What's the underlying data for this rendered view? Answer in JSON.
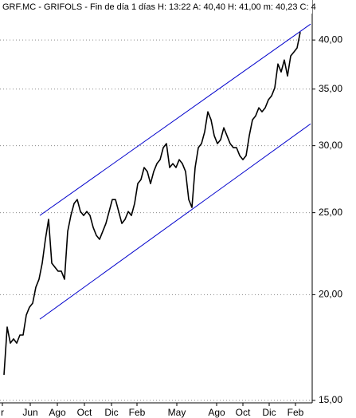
{
  "chart_data": {
    "type": "line",
    "title": "GRF.MC - GRIFOLS - Fin de día 1 días  H: 13:22  A: 40,40  H: 41,00  m: 40,23  C: 4",
    "log_y": true,
    "grid": true,
    "series": [
      {
        "color": "#000000",
        "values": [
          16.08,
          18.31,
          17.53,
          17.73,
          17.53,
          17.92,
          17.92,
          18.92,
          19.33,
          19.54,
          20.41,
          20.86,
          21.79,
          23.25,
          24.55,
          21.79,
          21.55,
          21.32,
          21.32,
          20.86,
          23.76,
          24.81,
          25.63,
          25.91,
          25.08,
          24.81,
          25.08,
          24.81,
          24.02,
          23.5,
          23.25,
          23.76,
          24.28,
          25.08,
          25.91,
          25.91,
          25.08,
          24.28,
          24.55,
          25.08,
          24.81,
          25.63,
          27.06,
          27.36,
          28.27,
          27.96,
          27.06,
          27.96,
          28.57,
          28.88,
          29.84,
          30.17,
          28.27,
          28.57,
          28.27,
          28.88,
          28.57,
          27.96,
          25.91,
          25.36,
          28.27,
          29.84,
          30.17,
          31.16,
          32.9,
          32.19,
          30.83,
          30.17,
          30.49,
          31.5,
          30.83,
          30.17,
          29.84,
          29.84,
          29.2,
          28.88,
          29.2,
          30.83,
          32.19,
          32.54,
          33.26,
          32.9,
          33.26,
          33.99,
          34.36,
          35.12,
          37.47,
          36.67,
          37.88,
          36.27,
          38.3,
          38.71,
          39.14,
          40.87
        ]
      }
    ],
    "trendlines": [
      {
        "color": "#0000cc",
        "x": [
          11.25,
          96.25
        ],
        "values": [
          24.81,
          41.77
        ]
      },
      {
        "color": "#0000cc",
        "x": [
          11.25,
          96.25
        ],
        "values": [
          18.71,
          31.84
        ]
      }
    ],
    "xlim": [
      -1.25,
      96.75
    ],
    "xticks": [
      {
        "value": -0.5,
        "label": "r"
      },
      {
        "value": 8.25,
        "label": "Jun"
      },
      {
        "value": 16.75,
        "label": "Ago"
      },
      {
        "value": 25.25,
        "label": "Oct"
      },
      {
        "value": 33.75,
        "label": "Dic"
      },
      {
        "value": 41.75,
        "label": "Feb"
      },
      {
        "value": 54.25,
        "label": "May"
      },
      {
        "value": 66.75,
        "label": "Ago"
      },
      {
        "value": 75,
        "label": "Oct"
      },
      {
        "value": 83.25,
        "label": "Dic"
      },
      {
        "value": 91.5,
        "label": "Feb"
      }
    ],
    "ylim": [
      14.9,
      44.6
    ],
    "yticks": [
      {
        "value": 15,
        "label": "15,00"
      },
      {
        "value": 20,
        "label": "20,00"
      },
      {
        "value": 25,
        "label": "25,00"
      },
      {
        "value": 30,
        "label": "30,00"
      },
      {
        "value": 35,
        "label": "35,00"
      },
      {
        "value": 40,
        "label": "40,00"
      }
    ]
  }
}
